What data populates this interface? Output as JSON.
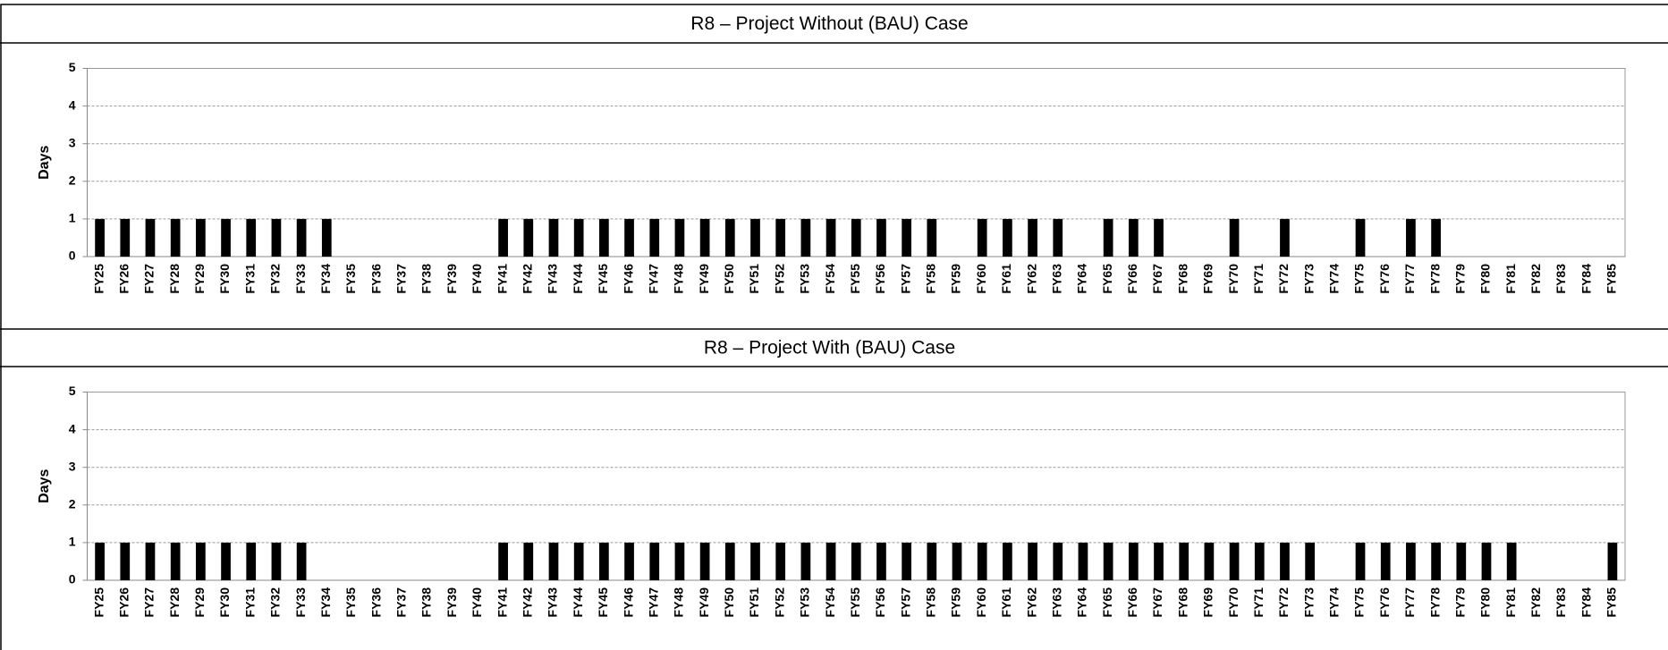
{
  "chart_data": [
    {
      "type": "bar",
      "title": "R8 – Project Without (BAU) Case",
      "y_label": "Days",
      "categories": [
        "FY25",
        "FY26",
        "FY27",
        "FY28",
        "FY29",
        "FY30",
        "FY31",
        "FY32",
        "FY33",
        "FY34",
        "FY35",
        "FY36",
        "FY37",
        "FY38",
        "FY39",
        "FY40",
        "FY41",
        "FY42",
        "FY43",
        "FY44",
        "FY45",
        "FY46",
        "FY47",
        "FY48",
        "FY49",
        "FY50",
        "FY51",
        "FY52",
        "FY53",
        "FY54",
        "FY55",
        "FY56",
        "FY57",
        "FY58",
        "FY59",
        "FY60",
        "FY61",
        "FY62",
        "FY63",
        "FY64",
        "FY65",
        "FY66",
        "FY67",
        "FY68",
        "FY69",
        "FY70",
        "FY71",
        "FY72",
        "FY73",
        "FY74",
        "FY75",
        "FY76",
        "FY77",
        "FY78",
        "FY79",
        "FY80",
        "FY81",
        "FY82",
        "FY83",
        "FY84",
        "FY85"
      ],
      "values": [
        1,
        1,
        1,
        1,
        1,
        1,
        1,
        1,
        1,
        1,
        0,
        0,
        0,
        0,
        0,
        0,
        1,
        1,
        1,
        1,
        1,
        1,
        1,
        1,
        1,
        1,
        1,
        1,
        1,
        1,
        1,
        1,
        1,
        1,
        0,
        1,
        1,
        1,
        1,
        0,
        1,
        1,
        1,
        0,
        0,
        1,
        0,
        1,
        0,
        0,
        1,
        0,
        1,
        1,
        0,
        0,
        0,
        0,
        0,
        0,
        0
      ],
      "color": "#000000",
      "ylim": [
        0,
        5
      ],
      "yticks": [
        0,
        1,
        2,
        3,
        4,
        5
      ],
      "grid": true
    },
    {
      "type": "bar",
      "title": "R8 – Project With (BAU) Case",
      "y_label": "Days",
      "categories": [
        "FY25",
        "FY26",
        "FY27",
        "FY28",
        "FY29",
        "FY30",
        "FY31",
        "FY32",
        "FY33",
        "FY34",
        "FY35",
        "FY36",
        "FY37",
        "FY38",
        "FY39",
        "FY40",
        "FY41",
        "FY42",
        "FY43",
        "FY44",
        "FY45",
        "FY46",
        "FY47",
        "FY48",
        "FY49",
        "FY50",
        "FY51",
        "FY52",
        "FY53",
        "FY54",
        "FY55",
        "FY56",
        "FY57",
        "FY58",
        "FY59",
        "FY60",
        "FY61",
        "FY62",
        "FY63",
        "FY64",
        "FY65",
        "FY66",
        "FY67",
        "FY68",
        "FY69",
        "FY70",
        "FY71",
        "FY72",
        "FY73",
        "FY74",
        "FY75",
        "FY76",
        "FY77",
        "FY78",
        "FY79",
        "FY80",
        "FY81",
        "FY82",
        "FY83",
        "FY84",
        "FY85"
      ],
      "values": [
        1,
        1,
        1,
        1,
        1,
        1,
        1,
        1,
        1,
        0,
        0,
        0,
        0,
        0,
        0,
        0,
        1,
        1,
        1,
        1,
        1,
        1,
        1,
        1,
        1,
        1,
        1,
        1,
        1,
        1,
        1,
        1,
        1,
        1,
        1,
        1,
        1,
        1,
        1,
        1,
        1,
        1,
        1,
        1,
        1,
        1,
        1,
        1,
        1,
        0,
        1,
        1,
        1,
        1,
        1,
        1,
        1,
        0,
        0,
        0,
        1
      ],
      "color": "#000000",
      "ylim": [
        0,
        5
      ],
      "yticks": [
        0,
        1,
        2,
        3,
        4,
        5
      ],
      "grid": true
    }
  ]
}
